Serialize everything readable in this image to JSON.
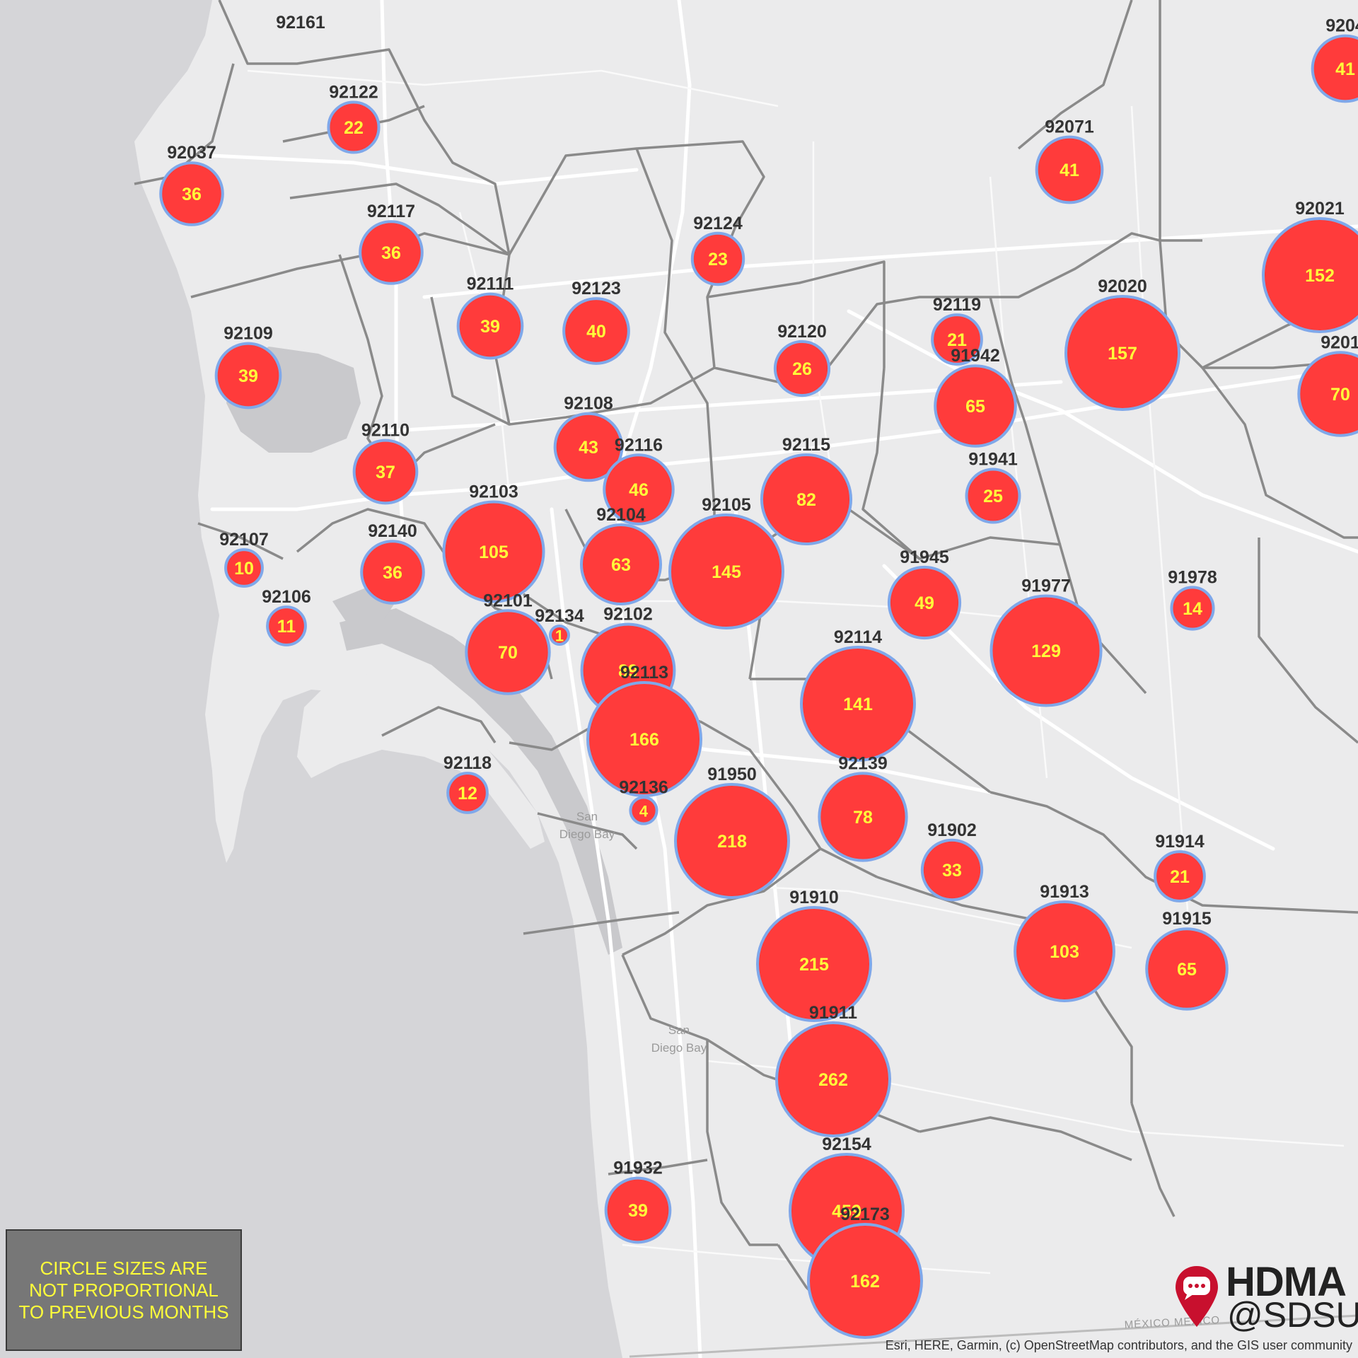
{
  "note": {
    "text": "CIRCLE SIZES ARE\nNOT PROPORTIONAL\nTO PREVIOUS MONTHS"
  },
  "logo": {
    "title": "HDMA",
    "subtitle": "@SDSU",
    "icon": "map-pin-chat-icon",
    "pin_color": "#c8102e"
  },
  "attribution": "Esri, HERE, Garmin, (c) OpenStreetMap contributors, and the GIS user community",
  "water_labels": [
    "San",
    "Diego Bay",
    "San",
    "Diego Bay"
  ],
  "border_label": "MÉXICO MEXICO",
  "colors": {
    "bubble_fill": "#ff3b3b",
    "bubble_stroke": "#7fa8ea",
    "count_text": "#ffff3a",
    "ocean": "#d5d5d8",
    "land": "#ebebec"
  },
  "zip_counts": [
    {
      "zip": "92161",
      "count": null
    },
    {
      "zip": "92122",
      "count": 22
    },
    {
      "zip": "92037",
      "count": 36
    },
    {
      "zip": "92117",
      "count": 36
    },
    {
      "zip": "92124",
      "count": 23
    },
    {
      "zip": "92111",
      "count": 39
    },
    {
      "zip": "92123",
      "count": 40
    },
    {
      "zip": "92109",
      "count": 39
    },
    {
      "zip": "92120",
      "count": 26
    },
    {
      "zip": "92119",
      "count": 21
    },
    {
      "zip": "92071",
      "count": 41
    },
    {
      "zip": "92020",
      "count": 157
    },
    {
      "zip": "92021",
      "count": 152
    },
    {
      "zip": "9204",
      "count": 41
    },
    {
      "zip": "9201",
      "count": 70
    },
    {
      "zip": "91942",
      "count": 65
    },
    {
      "zip": "92108",
      "count": 43
    },
    {
      "zip": "92110",
      "count": 37
    },
    {
      "zip": "92116",
      "count": 46
    },
    {
      "zip": "92115",
      "count": 82
    },
    {
      "zip": "91941",
      "count": 25
    },
    {
      "zip": "92103",
      "count": 105
    },
    {
      "zip": "92104",
      "count": 63
    },
    {
      "zip": "92105",
      "count": 145
    },
    {
      "zip": "92107",
      "count": 10
    },
    {
      "zip": "92140",
      "count": 36
    },
    {
      "zip": "91945",
      "count": 49
    },
    {
      "zip": "91978",
      "count": 14
    },
    {
      "zip": "92106",
      "count": 11
    },
    {
      "zip": "92101",
      "count": 70
    },
    {
      "zip": "92134",
      "count": 1
    },
    {
      "zip": "92102",
      "count": 89
    },
    {
      "zip": "91977",
      "count": 129
    },
    {
      "zip": "92114",
      "count": 141
    },
    {
      "zip": "92113",
      "count": 166
    },
    {
      "zip": "92118",
      "count": 12
    },
    {
      "zip": "92136",
      "count": 4
    },
    {
      "zip": "91950",
      "count": 218
    },
    {
      "zip": "92139",
      "count": 78
    },
    {
      "zip": "91902",
      "count": 33
    },
    {
      "zip": "91914",
      "count": 21
    },
    {
      "zip": "91910",
      "count": 215
    },
    {
      "zip": "91913",
      "count": 103
    },
    {
      "zip": "91915",
      "count": 65
    },
    {
      "zip": "91911",
      "count": 262
    },
    {
      "zip": "92154",
      "count": 459
    },
    {
      "zip": "91932",
      "count": 39
    },
    {
      "zip": "92173",
      "count": 162
    }
  ]
}
